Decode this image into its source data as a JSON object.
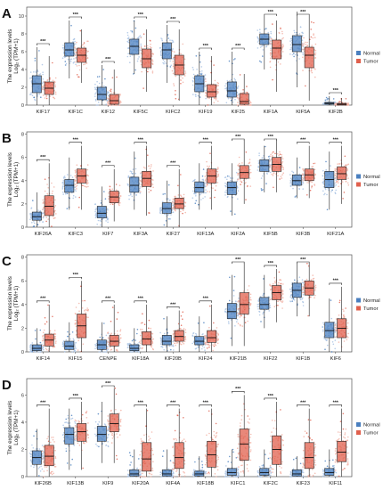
{
  "colors": {
    "normal": "#4a7fbf",
    "tumor": "#e0604d",
    "normal_light": "#a9c3e4",
    "tumor_light": "#f2b1a4"
  },
  "chart_data": [
    {
      "type": "box",
      "panel": "A",
      "ylabel_line1": "The expression levels",
      "ylabel_line2": "Log₂ (TPM+1)",
      "ylim": [
        0,
        11
      ],
      "yticks": [
        0,
        2,
        4,
        6,
        8,
        10
      ],
      "categories": [
        "KIF17",
        "KIF1C",
        "KIF12",
        "KIF5C",
        "KIFC2",
        "KIF19",
        "KIF25",
        "KIF1A",
        "KIF5A",
        "KIF2B"
      ],
      "significance": [
        "***",
        "***",
        "***",
        "***",
        "***",
        "***",
        "***",
        "***",
        "***",
        "***"
      ],
      "series": [
        {
          "name": "Normal",
          "q1": [
            1.4,
            5.5,
            0.6,
            5.7,
            5.2,
            1.5,
            0.9,
            6.8,
            6.0,
            0.1
          ],
          "median": [
            2.4,
            6.2,
            1.2,
            6.6,
            6.2,
            2.4,
            1.6,
            7.4,
            6.8,
            0.2
          ],
          "q3": [
            3.3,
            7.0,
            2.0,
            7.4,
            7.0,
            3.3,
            2.6,
            8.0,
            7.8,
            0.3
          ],
          "min": [
            0.0,
            3.0,
            0.0,
            3.5,
            2.5,
            0.0,
            0.0,
            4.0,
            2.0,
            0.0
          ],
          "max": [
            6.5,
            9.5,
            4.5,
            9.5,
            9.0,
            6.0,
            6.0,
            10.0,
            10.5,
            1.0
          ]
        },
        {
          "name": "Tumor",
          "q1": [
            1.2,
            4.8,
            0.1,
            4.2,
            3.4,
            0.9,
            0.1,
            5.2,
            4.2,
            0.0
          ],
          "median": [
            1.9,
            5.6,
            0.5,
            5.2,
            4.5,
            1.5,
            0.4,
            6.4,
            5.6,
            0.1
          ],
          "q3": [
            2.6,
            6.4,
            1.2,
            6.3,
            5.6,
            2.3,
            1.3,
            7.3,
            6.5,
            0.2
          ],
          "min": [
            0.0,
            2.5,
            0.0,
            1.5,
            0.5,
            0.0,
            0.0,
            1.5,
            0.5,
            0.0
          ],
          "max": [
            5.5,
            8.5,
            4.0,
            8.5,
            8.5,
            5.5,
            3.5,
            9.5,
            10.0,
            0.8
          ]
        }
      ],
      "legend": [
        "Normal",
        "Tumor"
      ],
      "legend_position": "right"
    },
    {
      "type": "box",
      "panel": "B",
      "ylabel_line1": "The expression levels",
      "ylabel_line2": "Log₂ (TPM+1)",
      "ylim": [
        0,
        8.2
      ],
      "yticks": [
        0,
        2,
        4,
        6,
        8
      ],
      "categories": [
        "KIF26A",
        "KIFC3",
        "KIF7",
        "KIF3A",
        "KIF27",
        "KIF13A",
        "KIF2A",
        "KIF5B",
        "KIF3B",
        "KIF21A"
      ],
      "significance": [
        "***",
        "***",
        "***",
        "***",
        "***",
        "***",
        "***",
        "***",
        "***",
        "***"
      ],
      "series": [
        {
          "name": "Normal",
          "q1": [
            0.6,
            3.0,
            0.8,
            3.0,
            1.2,
            3.0,
            2.8,
            4.8,
            3.6,
            3.4
          ],
          "median": [
            0.9,
            3.6,
            1.2,
            3.6,
            1.6,
            3.4,
            3.4,
            5.3,
            4.0,
            4.1
          ],
          "q3": [
            1.3,
            4.1,
            1.8,
            4.3,
            2.1,
            3.9,
            3.9,
            5.8,
            4.5,
            4.8
          ],
          "min": [
            0.0,
            1.5,
            0.0,
            1.5,
            0.0,
            1.5,
            1.0,
            3.0,
            2.5,
            1.5
          ],
          "max": [
            3.0,
            6.0,
            3.5,
            6.5,
            4.0,
            5.5,
            5.5,
            7.0,
            6.0,
            6.5
          ]
        },
        {
          "name": "Tumor",
          "q1": [
            1.0,
            3.8,
            2.1,
            3.5,
            1.6,
            3.8,
            4.2,
            4.8,
            4.0,
            4.1
          ],
          "median": [
            1.8,
            4.4,
            2.6,
            4.2,
            2.0,
            4.4,
            4.7,
            5.4,
            4.5,
            4.6
          ],
          "q3": [
            2.7,
            5.0,
            3.1,
            4.8,
            2.5,
            5.0,
            5.3,
            6.0,
            5.0,
            5.2
          ],
          "min": [
            0.0,
            1.5,
            0.5,
            1.0,
            0.0,
            1.5,
            2.0,
            3.0,
            2.5,
            2.0
          ],
          "max": [
            5.5,
            7.0,
            5.0,
            7.0,
            5.0,
            7.0,
            7.5,
            7.5,
            7.0,
            7.0
          ]
        }
      ],
      "legend": [
        "Normal",
        "Tumor"
      ],
      "legend_position": "right"
    },
    {
      "type": "box",
      "panel": "C",
      "ylabel_line1": "The expression levels",
      "ylabel_line2": "Log₂ (TPM+1)",
      "ylim": [
        0,
        8.2
      ],
      "yticks": [
        0,
        2,
        4,
        6,
        8
      ],
      "categories": [
        "KIF14",
        "KIF15",
        "CENPE",
        "KIF18A",
        "KIF20B",
        "KIF24",
        "KIF21B",
        "KIF22",
        "KIF1B",
        "KIF6"
      ],
      "significance": [
        "***",
        "***",
        "***",
        "***",
        "***",
        "***",
        "***",
        "***",
        "***",
        "***"
      ],
      "series": [
        {
          "name": "Normal",
          "q1": [
            0.1,
            0.2,
            0.2,
            0.1,
            0.6,
            0.6,
            2.8,
            3.6,
            4.6,
            1.2
          ],
          "median": [
            0.3,
            0.5,
            0.6,
            0.3,
            0.9,
            0.9,
            3.4,
            4.0,
            5.2,
            1.8
          ],
          "q3": [
            0.6,
            0.9,
            1.0,
            0.6,
            1.4,
            1.3,
            4.1,
            4.6,
            5.8,
            2.5
          ],
          "min": [
            0.0,
            0.0,
            0.0,
            0.0,
            0.0,
            0.0,
            0.5,
            2.0,
            3.0,
            0.0
          ],
          "max": [
            2.0,
            2.5,
            2.5,
            2.0,
            3.0,
            3.0,
            6.5,
            6.5,
            7.5,
            4.5
          ]
        },
        {
          "name": "Tumor",
          "q1": [
            0.5,
            1.2,
            0.5,
            0.6,
            0.9,
            0.8,
            3.2,
            4.4,
            4.8,
            1.2
          ],
          "median": [
            1.0,
            2.2,
            0.9,
            1.1,
            1.3,
            1.2,
            4.0,
            5.0,
            5.4,
            2.0
          ],
          "q3": [
            1.5,
            3.2,
            1.4,
            1.7,
            1.8,
            1.8,
            5.0,
            5.6,
            6.0,
            2.8
          ],
          "min": [
            0.0,
            0.0,
            0.0,
            0.0,
            0.0,
            0.0,
            0.5,
            2.5,
            3.0,
            0.0
          ],
          "max": [
            4.0,
            6.0,
            4.0,
            4.0,
            3.5,
            4.0,
            7.5,
            7.0,
            7.5,
            5.5
          ]
        }
      ],
      "legend": [
        "Normal",
        "Tumor"
      ],
      "legend_position": "right"
    },
    {
      "type": "box",
      "panel": "D",
      "ylabel_line1": "The expression levels",
      "ylabel_line2": "Log₂ (TPM+1)",
      "ylim": [
        0,
        7.2
      ],
      "yticks": [
        0,
        2,
        4,
        6
      ],
      "categories": [
        "KIF26B",
        "KIF13B",
        "KIF9",
        "KIF20A",
        "KIF4A",
        "KIF18B",
        "KIFC1",
        "KIF2C",
        "KIF23",
        "KIF11"
      ],
      "significance": [
        "***",
        "***",
        "***",
        "***",
        "***",
        "***",
        "***",
        "***",
        "***",
        "***"
      ],
      "series": [
        {
          "name": "Normal",
          "q1": [
            0.9,
            2.4,
            2.6,
            0.05,
            0.05,
            0.05,
            0.1,
            0.1,
            0.05,
            0.1
          ],
          "median": [
            1.4,
            3.1,
            3.1,
            0.2,
            0.2,
            0.2,
            0.3,
            0.3,
            0.2,
            0.3
          ],
          "q3": [
            1.9,
            3.6,
            3.7,
            0.5,
            0.5,
            0.4,
            0.6,
            0.6,
            0.5,
            0.6
          ],
          "min": [
            0.0,
            0.5,
            1.0,
            0.0,
            0.0,
            0.0,
            0.0,
            0.0,
            0.0,
            0.0
          ],
          "max": [
            3.5,
            5.0,
            5.5,
            2.0,
            2.0,
            1.5,
            2.0,
            2.0,
            1.5,
            2.0
          ]
        },
        {
          "name": "Tumor",
          "q1": [
            0.8,
            2.6,
            3.3,
            0.4,
            0.6,
            0.7,
            1.2,
            0.9,
            0.6,
            1.1
          ],
          "median": [
            1.5,
            3.3,
            3.9,
            1.3,
            1.4,
            1.6,
            2.4,
            2.0,
            1.4,
            1.8
          ],
          "q3": [
            2.3,
            3.9,
            4.6,
            2.5,
            2.5,
            2.6,
            3.5,
            3.0,
            2.5,
            2.6
          ],
          "min": [
            0.0,
            0.5,
            1.0,
            0.0,
            0.0,
            0.0,
            0.0,
            0.0,
            0.0,
            0.0
          ],
          "max": [
            5.0,
            5.5,
            6.5,
            5.0,
            5.0,
            5.0,
            6.0,
            5.5,
            5.0,
            5.0
          ]
        }
      ],
      "legend": [
        "Normal",
        "Tumor"
      ],
      "legend_position": "right"
    }
  ]
}
